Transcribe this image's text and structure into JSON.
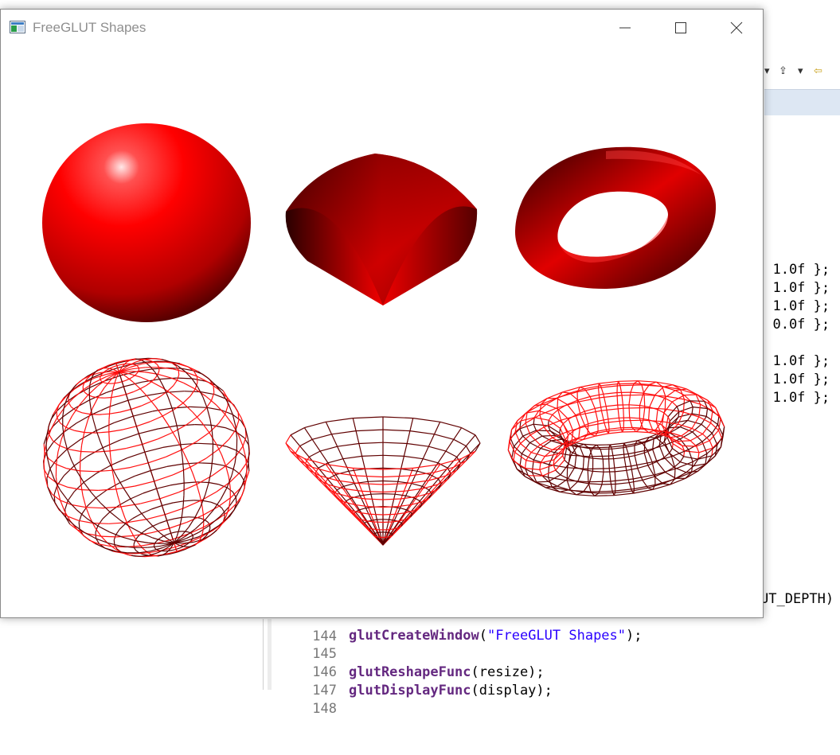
{
  "window": {
    "title": "FreeGLUT Shapes",
    "icon": "app-window-icon",
    "controls": {
      "minimize": "minimize-icon",
      "maximize": "maximize-icon",
      "close": "close-icon"
    }
  },
  "colors": {
    "shape_red": "#ff0000",
    "shape_dark": "#3a0000",
    "wire_red": "#ff1010",
    "wire_dark": "#600000",
    "title_text": "#8f8f8f",
    "code_function": "#642880",
    "code_string": "#2a00ff",
    "line_number": "#787878"
  },
  "scene": {
    "solid_row": [
      "solid-sphere",
      "solid-cone",
      "solid-torus"
    ],
    "wire_row": [
      "wire-sphere",
      "wire-cone",
      "wire-torus"
    ]
  },
  "ide": {
    "toolbar_icons": [
      "dropdown-arrow-icon",
      "pin-icon",
      "dropdown-arrow-icon",
      "back-arrow-icon"
    ],
    "code_fragments": [
      ", 1.0f };",
      ", 1.0f };",
      ", 1.0f };",
      ", 0.0f };",
      "",
      ", 1.0f };",
      ", 1.0f };",
      ", 1.0f };"
    ],
    "depth_fragment": "UT_DEPTH)",
    "code_lines": [
      {
        "num": "144",
        "fn": "",
        "open": "",
        "str": "",
        "close": ""
      },
      {
        "num": "145",
        "fn": "glutCreateWindow",
        "open": "(",
        "str": "\"FreeGLUT Shapes\"",
        "close": ");"
      },
      {
        "num": "146",
        "fn": "",
        "open": "",
        "str": "",
        "close": ""
      },
      {
        "num": "147",
        "fn": "glutReshapeFunc",
        "open": "(resize);",
        "str": "",
        "close": ""
      },
      {
        "num": "148",
        "fn": "glutDisplayFunc",
        "open": "(display);",
        "str": "",
        "close": ""
      }
    ]
  }
}
